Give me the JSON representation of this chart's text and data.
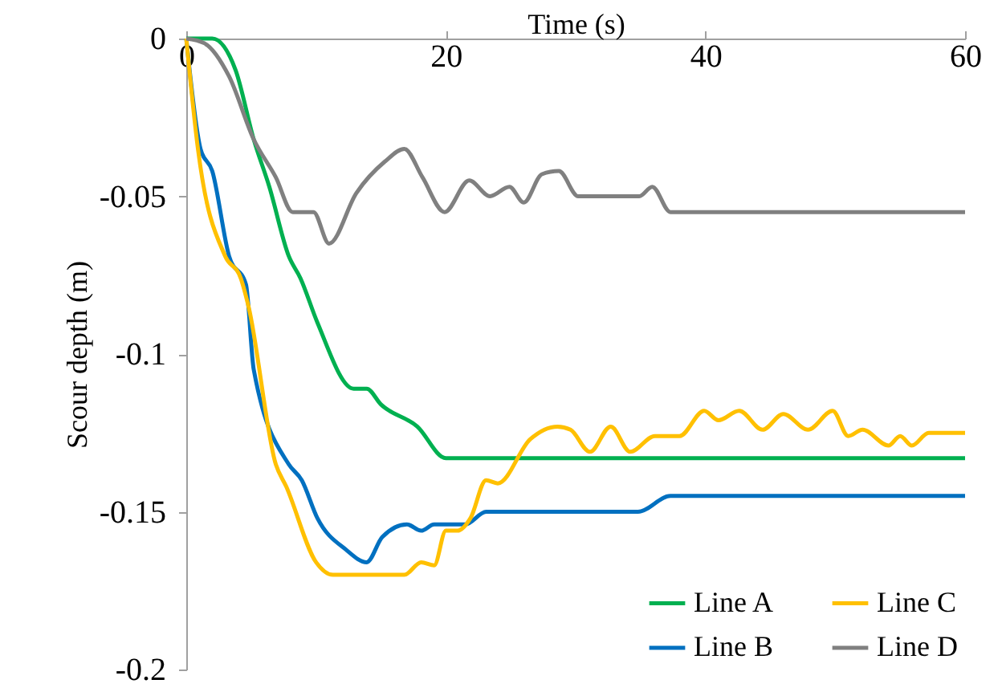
{
  "chart_data": {
    "type": "line",
    "xlabel": "Time (s)",
    "ylabel": "Scour depth (m)",
    "xlim": [
      0,
      60
    ],
    "xticks": [
      0,
      20,
      40,
      60
    ],
    "ylim": [
      -0.2,
      0
    ],
    "yticks": [
      -0.2,
      -0.15,
      -0.1,
      -0.05,
      0
    ],
    "grid": false,
    "legend": "bottom right",
    "marker": "none",
    "line_style": "solid",
    "series": [
      {
        "name": "Line A",
        "color": "#00b050",
        "x": [
          0,
          2.0,
          3.8,
          5.2,
          6.4,
          7.9,
          8.8,
          10.1,
          12.9,
          13.9,
          15.0,
          17.8,
          20.0,
          60
        ],
        "values": [
          0,
          0,
          -0.01,
          -0.032,
          -0.047,
          -0.069,
          -0.076,
          -0.09,
          -0.111,
          -0.111,
          -0.116,
          -0.123,
          -0.133,
          -0.133
        ]
      },
      {
        "name": "Line B",
        "color": "#0070c0",
        "x": [
          0,
          1.1,
          2.0,
          3.3,
          4.6,
          5.2,
          7.9,
          8.9,
          10.1,
          12.3,
          13.9,
          15.1,
          17.0,
          18.1,
          19.1,
          21.5,
          23.1,
          34.8,
          37.3,
          60
        ],
        "values": [
          0,
          -0.035,
          -0.042,
          -0.069,
          -0.078,
          -0.105,
          -0.135,
          -0.14,
          -0.152,
          -0.162,
          -0.166,
          -0.158,
          -0.154,
          -0.156,
          -0.154,
          -0.154,
          -0.15,
          -0.15,
          -0.145,
          -0.145
        ]
      },
      {
        "name": "Line C",
        "color": "#ffc000",
        "x": [
          0,
          0.9,
          3.0,
          4.2,
          4.8,
          6.9,
          7.7,
          10.0,
          11.3,
          16.8,
          18.1,
          19.1,
          20.0,
          20.9,
          21.9,
          23.1,
          24.0,
          26.5,
          28.6,
          29.6,
          31.1,
          32.7,
          34.2,
          36.1,
          38.0,
          39.9,
          41.0,
          42.6,
          44.4,
          46.0,
          47.9,
          49.8,
          51.0,
          52.1,
          54.1,
          55.0,
          55.9,
          57.2,
          60
        ],
        "values": [
          0,
          -0.035,
          -0.069,
          -0.076,
          -0.085,
          -0.135,
          -0.142,
          -0.166,
          -0.17,
          -0.17,
          -0.166,
          -0.167,
          -0.156,
          -0.156,
          -0.152,
          -0.14,
          -0.141,
          -0.127,
          -0.123,
          -0.124,
          -0.131,
          -0.123,
          -0.131,
          -0.126,
          -0.126,
          -0.118,
          -0.121,
          -0.118,
          -0.124,
          -0.119,
          -0.124,
          -0.118,
          -0.126,
          -0.124,
          -0.129,
          -0.126,
          -0.129,
          -0.125,
          -0.125
        ]
      },
      {
        "name": "Line D",
        "color": "#808080",
        "x": [
          0,
          1.4,
          3.3,
          5.2,
          6.9,
          8.2,
          9.8,
          11.0,
          13.1,
          15.3,
          16.8,
          18.2,
          19.9,
          21.8,
          23.4,
          24.9,
          26.0,
          27.4,
          28.7,
          30.2,
          34.9,
          35.9,
          37.3,
          60
        ],
        "values": [
          0,
          -0.0015,
          -0.012,
          -0.032,
          -0.044,
          -0.055,
          -0.055,
          -0.065,
          -0.049,
          -0.039,
          -0.035,
          -0.044,
          -0.055,
          -0.045,
          -0.05,
          -0.047,
          -0.052,
          -0.043,
          -0.042,
          -0.05,
          -0.05,
          -0.047,
          -0.055,
          -0.055
        ]
      }
    ]
  }
}
